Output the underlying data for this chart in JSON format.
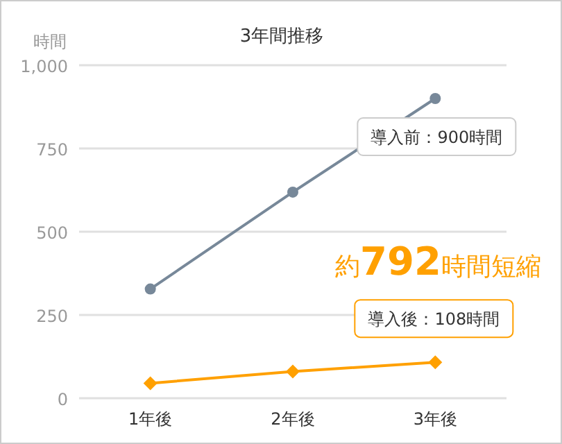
{
  "chart_data": {
    "type": "line",
    "title": "3年間推移",
    "ylabel": "時間",
    "categories": [
      "1年後",
      "2年後",
      "3年後"
    ],
    "series": [
      {
        "color": "#778899",
        "marker": "circle",
        "values": [
          328,
          619,
          900
        ]
      },
      {
        "color": "#ffa000",
        "marker": "diamond",
        "values": [
          45,
          80,
          108
        ]
      }
    ],
    "ylim": [
      0,
      1000
    ],
    "yticks": [
      0,
      250,
      500,
      750,
      {
        "value": 1000,
        "label": "1,000"
      }
    ],
    "grid": "y",
    "annotations": [
      {
        "text": "導入前：900時間",
        "x": "3年後",
        "y": 900
      },
      {
        "text": "導入後：108時間",
        "x": "3年後",
        "y": 108
      },
      "約**792**時間短縮"
    ]
  }
}
